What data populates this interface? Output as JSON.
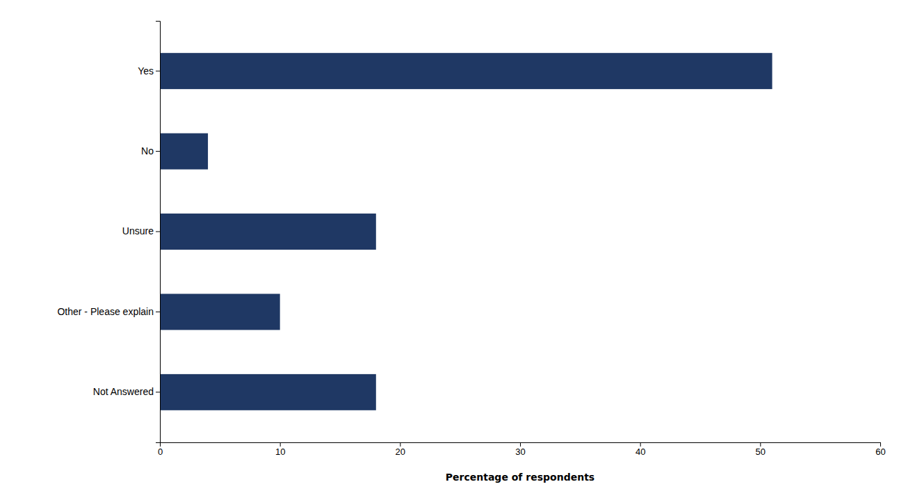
{
  "chart_data": {
    "type": "bar",
    "orientation": "horizontal",
    "categories": [
      "Yes",
      "No",
      "Unsure",
      "Other - Please explain",
      "Not Answered"
    ],
    "values": [
      51,
      4,
      18,
      10,
      18
    ],
    "color": "#1F3864",
    "xlabel": "Percentage of respondents",
    "xlim": [
      0,
      60
    ],
    "xticks": [
      0,
      10,
      20,
      30,
      40,
      50,
      60
    ],
    "grid": false
  }
}
